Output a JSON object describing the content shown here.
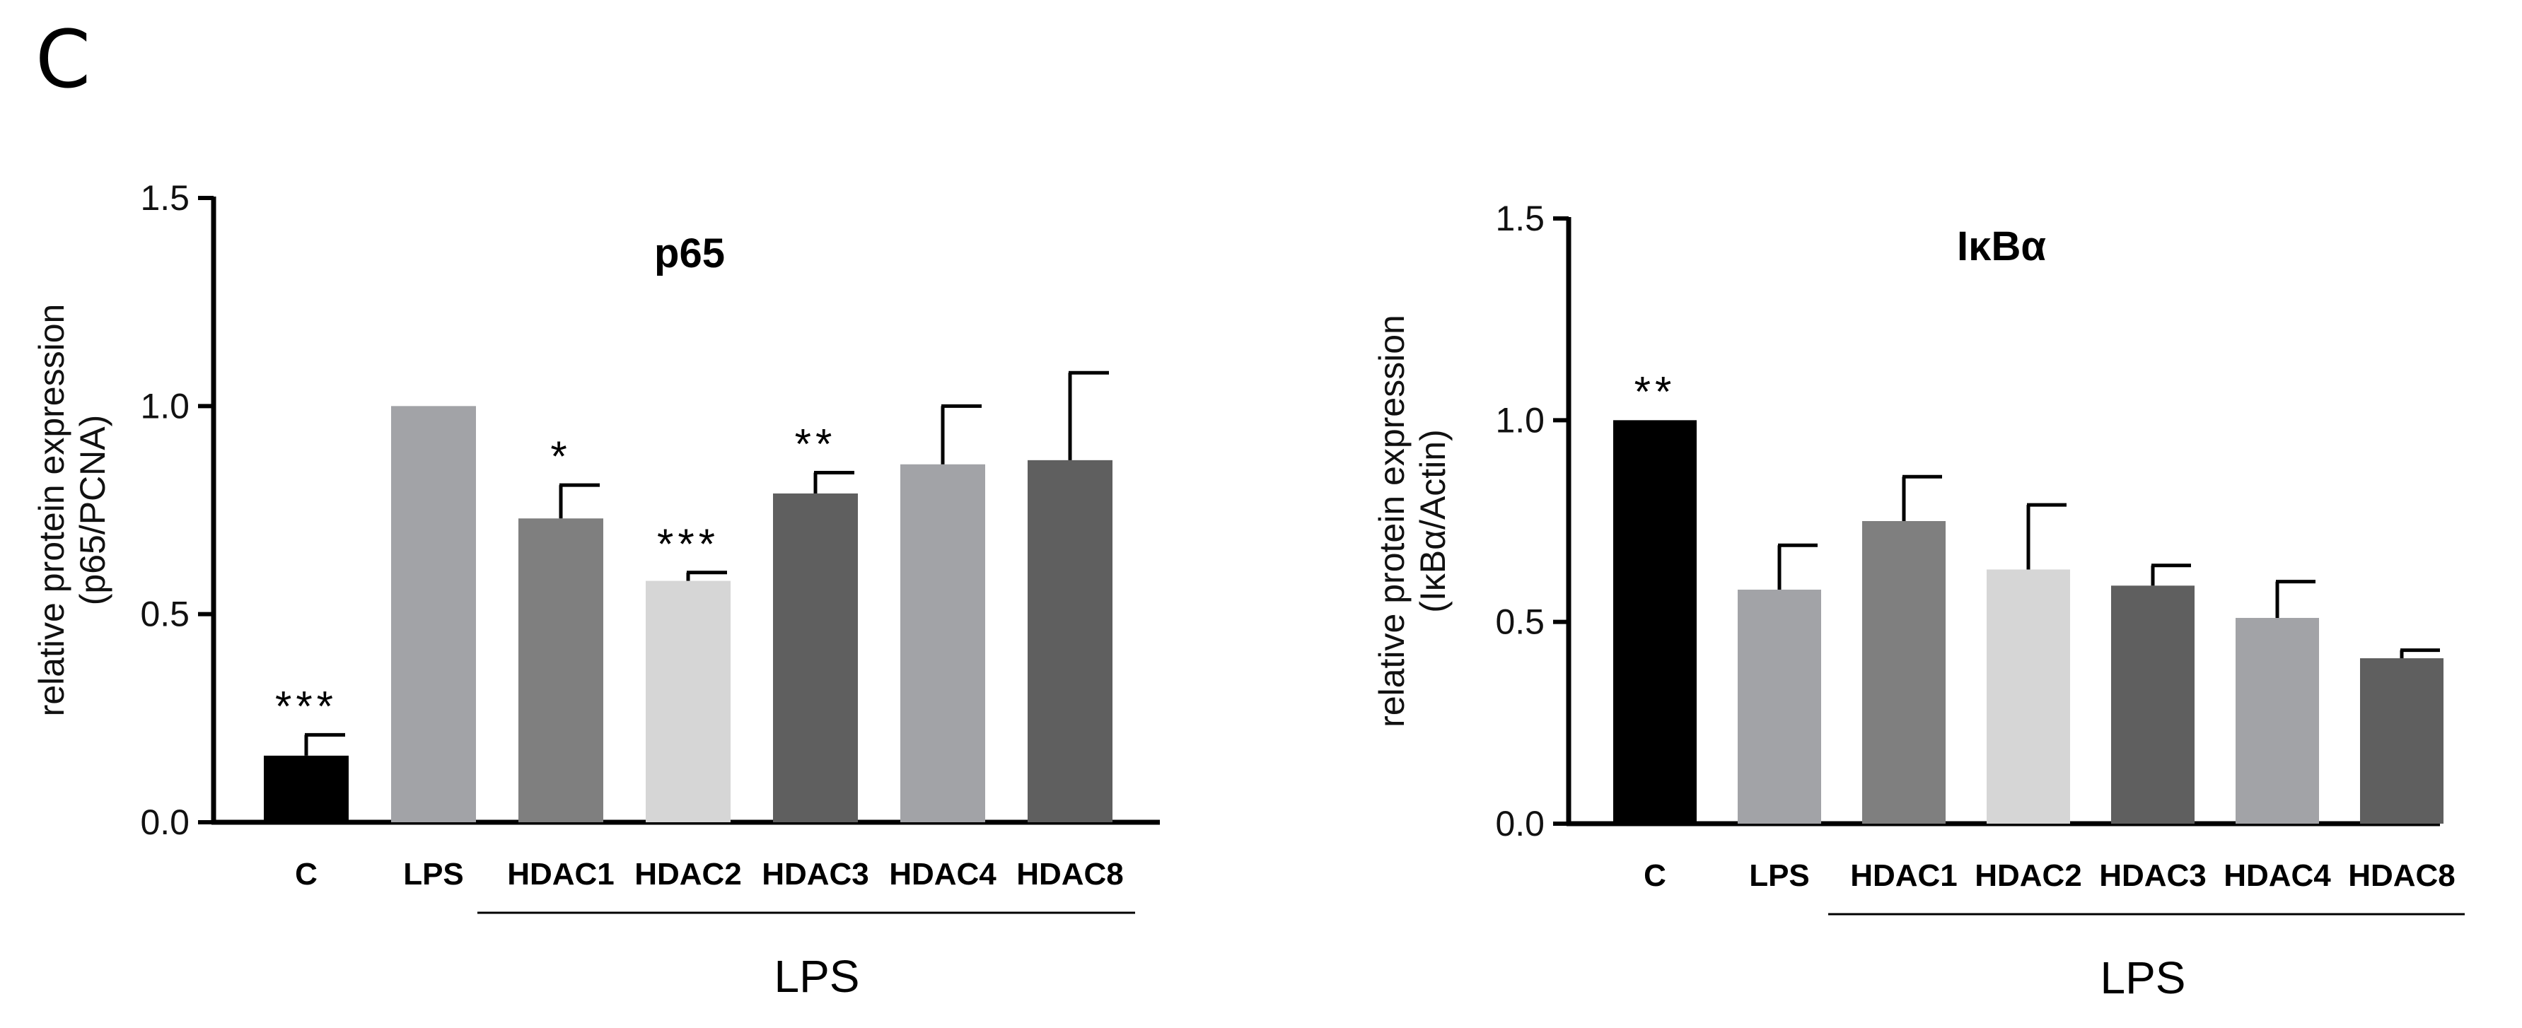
{
  "panel_label": "C",
  "chart_data": [
    {
      "type": "bar",
      "title": "p65",
      "ylabel_line1": "relative protein expression",
      "ylabel_line2": "(p65/PCNA)",
      "ylim": [
        0,
        1.5
      ],
      "yticks": [
        "0.0",
        "0.5",
        "1.0",
        "1.5"
      ],
      "ytick_values": [
        0,
        0.5,
        1.0,
        1.5
      ],
      "categories": [
        "C",
        "LPS",
        "HDAC1",
        "HDAC2",
        "HDAC3",
        "HDAC4",
        "HDAC8"
      ],
      "values": [
        0.16,
        1.0,
        0.73,
        0.58,
        0.79,
        0.86,
        0.87
      ],
      "errors": [
        0.05,
        0.0,
        0.08,
        0.02,
        0.05,
        0.14,
        0.21
      ],
      "significance": [
        "***",
        "",
        "*",
        "***",
        "**",
        "",
        ""
      ],
      "colors": [
        "#000000",
        "#a2a3a7",
        "#7f7f7f",
        "#d6d6d6",
        "#5f5f5f",
        "#a2a3a7",
        "#5f5f5f"
      ],
      "group_label": "LPS",
      "grid": false
    },
    {
      "type": "bar",
      "title": "IκBα",
      "ylabel_line1": "relative protein expression",
      "ylabel_line2": "(IκBα/Actin)",
      "ylim": [
        0,
        1.5
      ],
      "yticks": [
        "0.0",
        "0.5",
        "1.0",
        "1.5"
      ],
      "ytick_values": [
        0,
        0.5,
        1.0,
        1.5
      ],
      "categories": [
        "C",
        "LPS",
        "HDAC1",
        "HDAC2",
        "HDAC3",
        "HDAC4",
        "HDAC8"
      ],
      "values": [
        1.0,
        0.58,
        0.75,
        0.63,
        0.59,
        0.51,
        0.41
      ],
      "errors": [
        0.0,
        0.11,
        0.11,
        0.16,
        0.05,
        0.09,
        0.02
      ],
      "significance": [
        "**",
        "",
        "",
        "",
        "",
        "",
        ""
      ],
      "colors": [
        "#000000",
        "#a2a3a7",
        "#7f7f7f",
        "#d6d6d6",
        "#5f5f5f",
        "#a2a3a7",
        "#5f5f5f"
      ],
      "group_label": "LPS",
      "grid": false
    }
  ]
}
